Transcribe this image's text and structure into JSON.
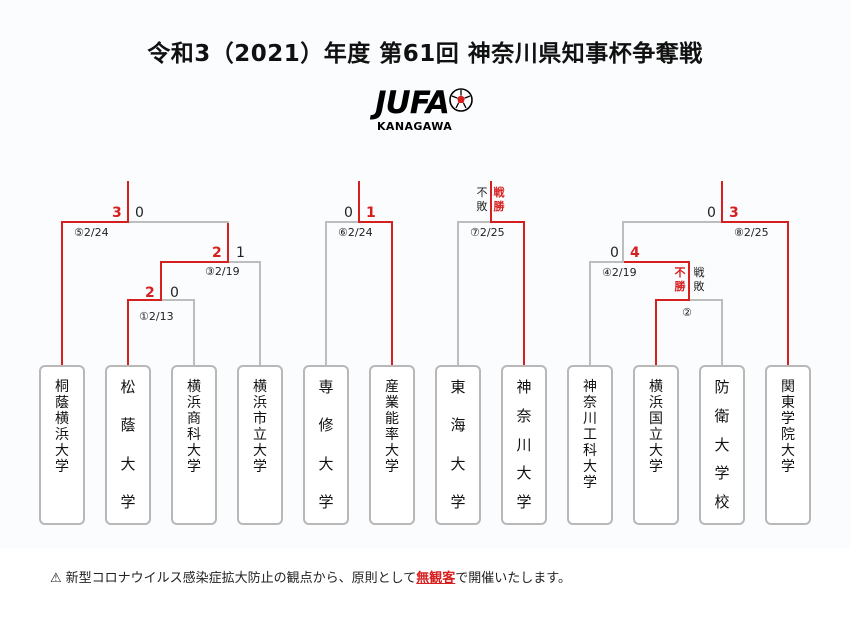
{
  "title": "令和3（2021）年度 第61回 神奈川県知事杯争奪戦",
  "logo": {
    "main_text": "JUFA",
    "sub_text": "KANAGAWA"
  },
  "colors": {
    "winner_line": "#d62020",
    "bracket_line": "#bdbdbd",
    "accent": "#d62020"
  },
  "teams": [
    {
      "id": "t1",
      "name": "桐蔭横浜大学"
    },
    {
      "id": "t2",
      "name": "松蔭大学"
    },
    {
      "id": "t3",
      "name": "横浜商科大学"
    },
    {
      "id": "t4",
      "name": "横浜市立大学"
    },
    {
      "id": "t5",
      "name": "専修大学"
    },
    {
      "id": "t6",
      "name": "産業能率大学"
    },
    {
      "id": "t7",
      "name": "東海大学"
    },
    {
      "id": "t8",
      "name": "神奈川大学"
    },
    {
      "id": "t9",
      "name": "神奈川工科大学"
    },
    {
      "id": "t10",
      "name": "横浜国立大学"
    },
    {
      "id": "t11",
      "name": "防衛大学校"
    },
    {
      "id": "t12",
      "name": "関東学院大学"
    }
  ],
  "matches": [
    {
      "id": "m1",
      "label": "①2/13",
      "left_score": "2",
      "right_score": "0",
      "winner": "left"
    },
    {
      "id": "m2",
      "label": "②",
      "left_result": "不勝",
      "right_result": "戦敗",
      "winner": "left"
    },
    {
      "id": "m3",
      "label": "③2/19",
      "left_score": "2",
      "right_score": "1",
      "winner": "left"
    },
    {
      "id": "m4",
      "label": "④2/19",
      "left_score": "0",
      "right_score": "4",
      "winner": "right"
    },
    {
      "id": "m5",
      "label": "⑤2/24",
      "left_score": "3",
      "right_score": "0",
      "winner": "left"
    },
    {
      "id": "m6",
      "label": "⑥2/24",
      "left_score": "0",
      "right_score": "1",
      "winner": "right"
    },
    {
      "id": "m7",
      "label": "⑦2/25",
      "left_result": "不敗",
      "right_result": "戦勝",
      "winner": "right"
    },
    {
      "id": "m8",
      "label": "⑧2/25",
      "left_score": "0",
      "right_score": "3",
      "winner": "right"
    }
  ],
  "notice": {
    "icon": "warning-icon",
    "warn_symbol": "⚠",
    "text_before": "新型コロナウイルス感染症拡大防止の観点から、原則として",
    "emphasis": "無観客",
    "text_after": "で開催いたします。"
  }
}
